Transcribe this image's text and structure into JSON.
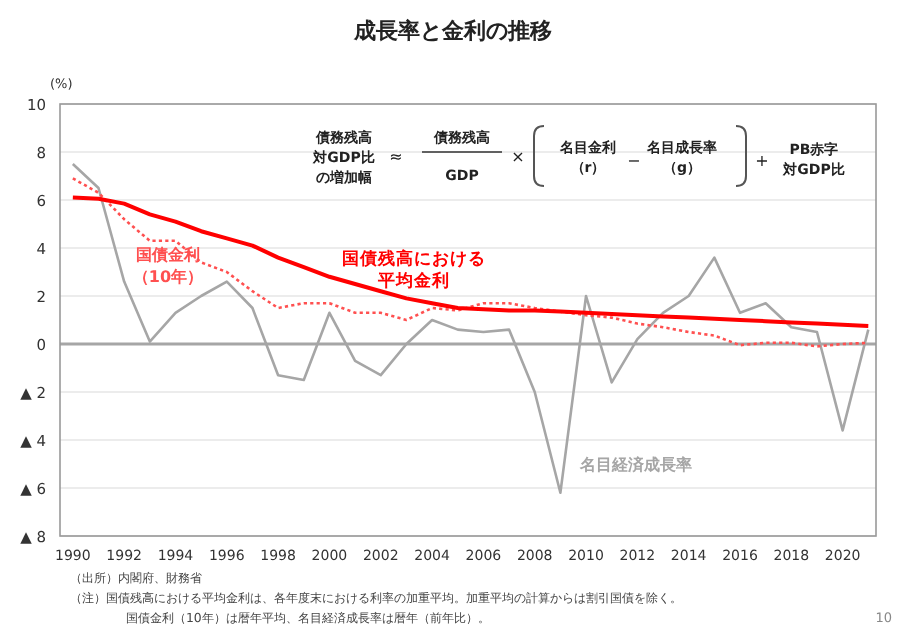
{
  "chart_data": {
    "type": "line",
    "title": "成長率と金利の推移",
    "ylabel": "(%)",
    "x": [
      1990,
      1991,
      1992,
      1993,
      1994,
      1995,
      1996,
      1997,
      1998,
      1999,
      2000,
      2001,
      2002,
      2003,
      2004,
      2005,
      2006,
      2007,
      2008,
      2009,
      2010,
      2011,
      2012,
      2013,
      2014,
      2015,
      2016,
      2017,
      2018,
      2019,
      2020,
      2021
    ],
    "series": [
      {
        "name": "名目経済成長率",
        "color": "#a6a6a6",
        "line_style": "solid",
        "values": [
          7.5,
          6.5,
          2.6,
          0.1,
          1.3,
          2.0,
          2.6,
          1.5,
          -1.3,
          -1.5,
          1.3,
          -0.7,
          -1.3,
          0.0,
          1.0,
          0.6,
          0.5,
          0.6,
          -2.0,
          -6.2,
          2.0,
          -1.6,
          0.2,
          1.3,
          2.0,
          3.6,
          1.3,
          1.7,
          0.7,
          0.5,
          -3.6,
          0.6
        ]
      },
      {
        "name": "国債金利（10年）",
        "color": "#ff5050",
        "line_style": "dotted",
        "values": [
          6.9,
          6.3,
          5.2,
          4.3,
          4.3,
          3.4,
          3.0,
          2.2,
          1.5,
          1.7,
          1.7,
          1.3,
          1.3,
          1.0,
          1.5,
          1.4,
          1.7,
          1.7,
          1.5,
          1.35,
          1.2,
          1.1,
          0.85,
          0.7,
          0.5,
          0.35,
          -0.05,
          0.05,
          0.05,
          -0.1,
          0.0,
          0.05
        ]
      },
      {
        "name": "国債残高における平均金利",
        "color": "#ff0000",
        "line_style": "solid",
        "values": [
          6.1,
          6.05,
          5.85,
          5.4,
          5.1,
          4.7,
          4.4,
          4.1,
          3.6,
          3.2,
          2.8,
          2.5,
          2.2,
          1.9,
          1.7,
          1.5,
          1.45,
          1.4,
          1.4,
          1.35,
          1.3,
          1.25,
          1.2,
          1.15,
          1.1,
          1.05,
          1.0,
          0.95,
          0.9,
          0.85,
          0.8,
          0.75
        ]
      }
    ],
    "xlim": [
      1989.5,
      2021.3
    ],
    "ylim": [
      -8,
      10
    ],
    "xticks": [
      1990,
      1992,
      1994,
      1996,
      1998,
      2000,
      2002,
      2004,
      2006,
      2008,
      2010,
      2012,
      2014,
      2016,
      2018,
      2020
    ],
    "yticks": [
      {
        "value": -8,
        "label": "▲ 8"
      },
      {
        "value": -6,
        "label": "▲ 6"
      },
      {
        "value": -4,
        "label": "▲ 4"
      },
      {
        "value": -2,
        "label": "▲ 2"
      },
      0,
      2,
      4,
      6,
      8,
      10
    ],
    "grid": "y",
    "legend": false,
    "marker": "none",
    "annotations": [
      "債務残高対GDP比の増加幅",
      "≈",
      "債務残高",
      "GDP",
      "×",
      "名目金利（r）",
      "−",
      "名目成長率（g）",
      "+",
      "PB赤字対GDP比",
      "（出所）内閣府、財務省",
      "（注）国債残高における平均金利は、各年度末における利率の加重平均。加重平均の計算からは割引国債を除く。",
      "国債金利（10年）は暦年平均、名目経済成長率は暦年（前年比）。",
      "10"
    ]
  }
}
